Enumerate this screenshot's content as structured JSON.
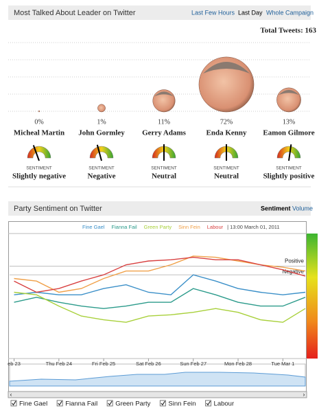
{
  "leaders_panel": {
    "title": "Most Talked About Leader on Twitter",
    "tabs": [
      "Last Few Hours",
      "Last Day",
      "Whole Campaign"
    ],
    "total_tweets": "Total Tweets: 163",
    "leaders": [
      {
        "name": "Micheal Martin",
        "share": 0,
        "share_label": "0%",
        "needle": -20,
        "sentiment_caption": "SENTIMENT",
        "sentiment": "Slightly negative"
      },
      {
        "name": "John Gormley",
        "share": 1,
        "share_label": "1%",
        "needle": -15,
        "sentiment_caption": "SENTIMENT",
        "sentiment": "Negative"
      },
      {
        "name": "Gerry Adams",
        "share": 11,
        "share_label": "11%",
        "needle": 0,
        "sentiment_caption": "SENTIMENT",
        "sentiment": "Neutral"
      },
      {
        "name": "Enda Kenny",
        "share": 72,
        "share_label": "72%",
        "needle": 0,
        "sentiment_caption": "SENTIMENT",
        "sentiment": "Neutral"
      },
      {
        "name": "Eamon Gilmore",
        "share": 13,
        "share_label": "13%",
        "needle": 8,
        "sentiment_caption": "SENTIMENT",
        "sentiment": "Slightly positive"
      }
    ]
  },
  "party_panel": {
    "title": "Party Sentiment on Twitter",
    "tabs": [
      "Sentiment",
      "Volume"
    ],
    "chart_data": {
      "type": "line",
      "timestamp": "| 13:00 March 01, 2011",
      "x": [
        0,
        0.5,
        1,
        1.5,
        2,
        2.5,
        3,
        3.5,
        4,
        4.5,
        5,
        5.5,
        6,
        6.5
      ],
      "xlim": [
        -0.1,
        6.5
      ],
      "xticks": [
        {
          "value": 0,
          "label": "eb 23"
        },
        {
          "value": 1,
          "label": "Thu Feb 24"
        },
        {
          "value": 2,
          "label": "Fri Feb 25"
        },
        {
          "value": 3,
          "label": "Sat Feb 26"
        },
        {
          "value": 4,
          "label": "Sun Feb 27"
        },
        {
          "value": 5,
          "label": "Mon Feb 28"
        },
        {
          "value": 6,
          "label": "Tue Mar 1"
        }
      ],
      "ylim": [
        0,
        100
      ],
      "reference_lines": [
        {
          "label": "Positive",
          "value": 74
        },
        {
          "label": "Negative",
          "value": 67
        }
      ],
      "series": [
        {
          "name": "Fine Gael",
          "color": "#3a8fc8",
          "values": [
            51,
            53,
            51,
            51,
            56,
            59,
            53,
            51,
            67,
            62,
            56,
            53,
            51,
            53
          ]
        },
        {
          "name": "Fianna Fail",
          "color": "#2a9a8a",
          "values": [
            45,
            49,
            45,
            42,
            40,
            42,
            45,
            45,
            56,
            51,
            45,
            42,
            42,
            49
          ]
        },
        {
          "name": "Green Party",
          "color": "#a8d03a",
          "values": [
            53,
            51,
            42,
            34,
            31,
            29,
            34,
            35,
            37,
            40,
            37,
            31,
            29,
            40
          ]
        },
        {
          "name": "Sinn Fein",
          "color": "#f0a048",
          "values": [
            64,
            62,
            53,
            56,
            64,
            70,
            70,
            75,
            82,
            81,
            78,
            75,
            73,
            70
          ]
        },
        {
          "name": "Labour",
          "color": "#d84040",
          "values": [
            62,
            53,
            56,
            62,
            67,
            75,
            78,
            79,
            81,
            79,
            79,
            75,
            71,
            66
          ]
        }
      ]
    }
  }
}
